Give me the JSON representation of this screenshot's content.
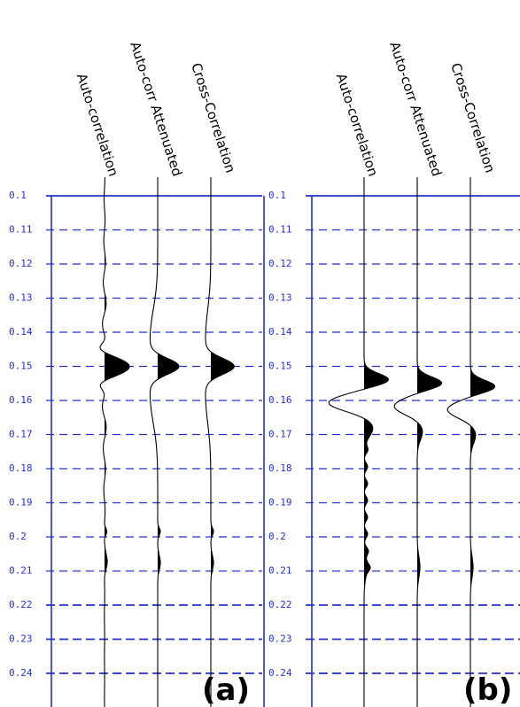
{
  "chart_data": [
    {
      "type": "line",
      "panel_label": "(a)",
      "trace_labels": [
        "Auto-correlation",
        "Auto-corr Attenuated",
        "Cross-Correlation"
      ],
      "y_ticks": [
        "0.1",
        "0.11",
        "0.12",
        "0.13",
        "0.14",
        "0.15",
        "0.16",
        "0.17",
        "0.18",
        "0.19",
        "0.2",
        "0.21",
        "0.22",
        "0.23",
        "0.24"
      ],
      "ylim": [
        0.1,
        0.24
      ],
      "y_axis_reversed": true,
      "grid": true,
      "series": [
        {
          "peak_y": 0.15,
          "oscillation": true
        },
        {
          "peak_y": 0.15,
          "oscillation": false
        },
        {
          "peak_y": 0.15,
          "oscillation": false
        }
      ]
    },
    {
      "type": "line",
      "panel_label": "(b)",
      "trace_labels": [
        "Auto-correlation",
        "Auto-corr Attenuated",
        "Cross-Correlation"
      ],
      "y_ticks": [
        "0.1",
        "0.11",
        "0.12",
        "0.13",
        "0.14",
        "0.15",
        "0.16",
        "0.17",
        "0.18",
        "0.19",
        "0.2",
        "0.21",
        "0.22",
        "0.23",
        "0.24"
      ],
      "ylim": [
        0.1,
        0.24
      ],
      "y_axis_reversed": true,
      "grid": true,
      "series": [
        {
          "peak_y": 0.155,
          "oscillation": true
        },
        {
          "peak_y": 0.156,
          "oscillation": false
        },
        {
          "peak_y": 0.157,
          "oscillation": false
        }
      ]
    }
  ],
  "colors": {
    "grid": "#2430c8",
    "trace": "#000000",
    "background": "#ffffff"
  }
}
